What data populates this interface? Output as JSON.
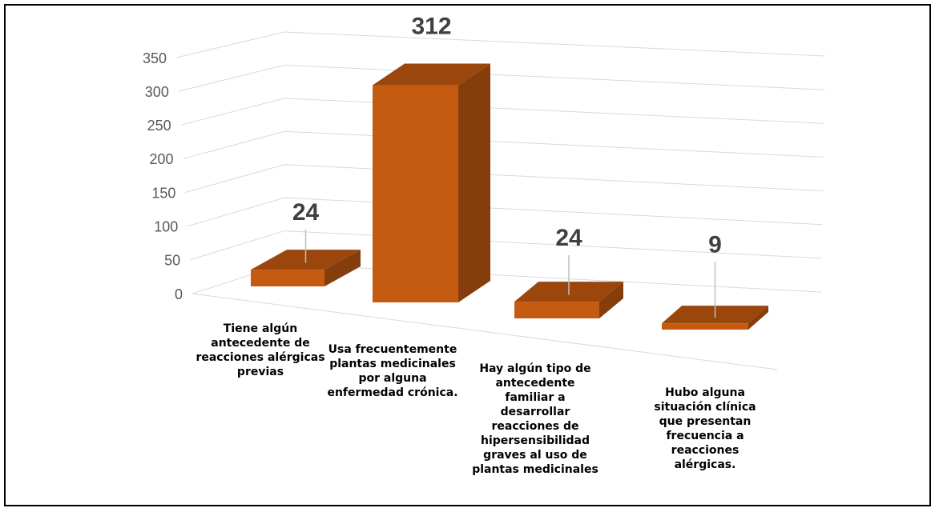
{
  "chart_data": {
    "type": "bar3d",
    "categories": [
      "Tiene algún antecedente de reacciones alérgicas previas",
      "Usa frecuentemente plantas medicinales por alguna enfermedad crónica.",
      "Hay algún tipo de antecedente familiar a desarrollar reacciones de hipersensibilidad graves al uso de plantas medicinales",
      "Hubo alguna situación clínica que presentan frecuencia a reacciones alérgicas."
    ],
    "values": [
      24,
      312,
      24,
      9
    ],
    "color": "#c55a11",
    "ylim": [
      0,
      350
    ],
    "yticks": [
      0,
      50,
      100,
      150,
      200,
      250,
      300,
      350
    ],
    "grid": true
  }
}
